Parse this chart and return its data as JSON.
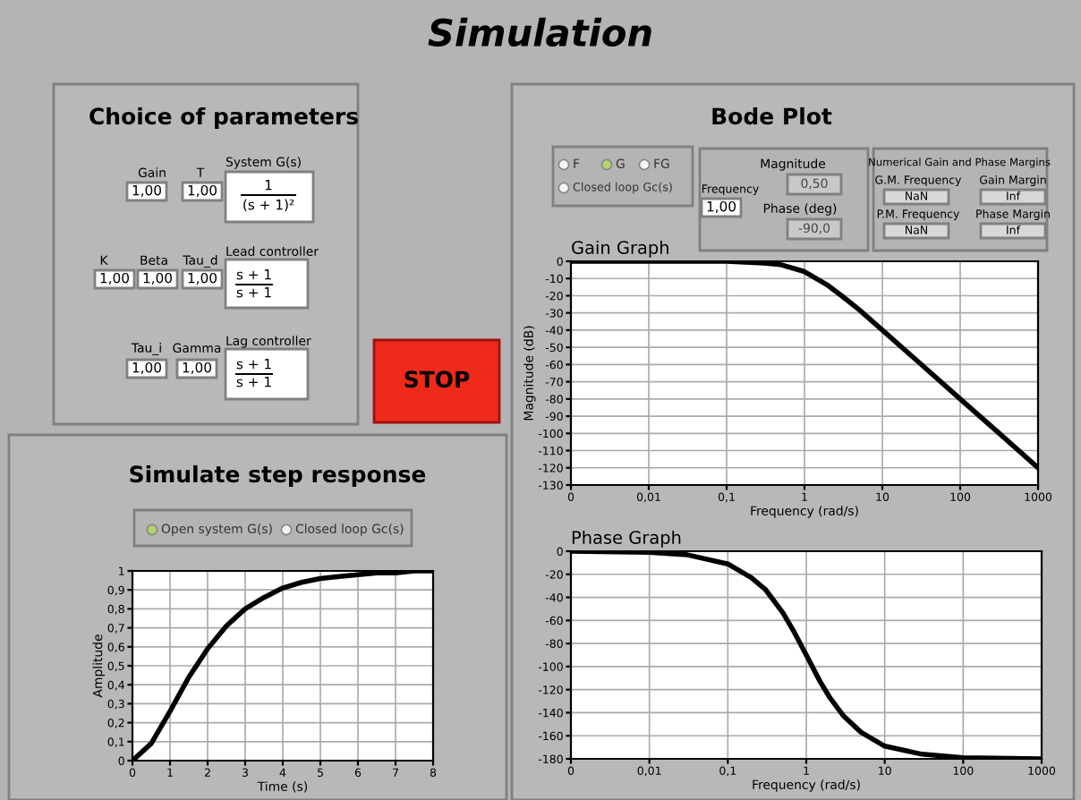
{
  "chart_data": [
    {
      "type": "other",
      "title": "Simulation",
      "annotations": [
        "Choice of parameters",
        "Gain",
        "1,00",
        "T",
        "1,00",
        "System G(s)",
        "1",
        "(s + 1)²",
        "K",
        "1,00",
        "Beta",
        "1,00",
        "Tau_d",
        "1,00",
        "Lead controller",
        "s + 1",
        "s + 1",
        "Tau_i",
        "1,00",
        "Gamma",
        "1,00",
        "Lag controller",
        "s + 1",
        "s + 1",
        "STOP",
        "Bode Plot",
        "F",
        "G",
        "FG",
        "Closed loop Gc(s)",
        "Frequency",
        "1,00",
        "Magnitude",
        "0,50",
        "Phase (deg)",
        "-90,0",
        "Numerical Gain and Phase Margins",
        "G.M. Frequency",
        "NaN",
        "Gain Margin",
        "Inf",
        "P.M. Frequency",
        "NaN",
        "Phase Margin",
        "Inf",
        "Simulate step response",
        "Open system G(s)",
        "Closed loop Gc(s)"
      ]
    },
    {
      "type": "line",
      "xlabel": "Time (s)",
      "ylabel": "Amplitude",
      "x": [
        0,
        0.5,
        1,
        1.5,
        2,
        2.5,
        3,
        3.5,
        4,
        4.5,
        5,
        5.5,
        6,
        6.5,
        7,
        7.5,
        8
      ],
      "series": [
        {
          "color": "#000000",
          "values": [
            0,
            0.09,
            0.26,
            0.44,
            0.59,
            0.71,
            0.8,
            0.86,
            0.91,
            0.94,
            0.96,
            0.97,
            0.98,
            0.99,
            0.99,
            1.0,
            1.0
          ]
        }
      ],
      "xlim": [
        0,
        8
      ],
      "xticks": [
        0,
        1,
        2,
        3,
        4,
        5,
        6,
        7,
        8
      ],
      "ylim": [
        0,
        1
      ],
      "yticks": [
        0,
        {
          "value": 0.1,
          "label": "0,1"
        },
        {
          "value": 0.2,
          "label": "0,2"
        },
        {
          "value": 0.3,
          "label": "0,3"
        },
        {
          "value": 0.4,
          "label": "0,4"
        },
        {
          "value": 0.5,
          "label": "0,5"
        },
        {
          "value": 0.6,
          "label": "0,6"
        },
        {
          "value": 0.7,
          "label": "0,7"
        },
        {
          "value": 0.8,
          "label": "0,8"
        },
        {
          "value": 0.9,
          "label": "0,9"
        },
        1
      ],
      "grid": true,
      "legend": false
    },
    {
      "type": "line",
      "title": "Gain Graph",
      "xlabel": "Frequency (rad/s)",
      "ylabel": "Magnitude (dB)",
      "log": "x",
      "x": [
        0.001,
        0.01,
        0.1,
        0.3,
        0.5,
        1,
        2,
        3,
        5,
        10,
        30,
        100,
        300,
        1000
      ],
      "series": [
        {
          "color": "#000000",
          "values": [
            0,
            0,
            0,
            -1,
            -2,
            -6,
            -14,
            -20,
            -28,
            -40,
            -59,
            -80,
            -99,
            -120
          ]
        }
      ],
      "xlim": [
        0.001,
        1000
      ],
      "xticks": [
        {
          "value": 0.001,
          "label": "0"
        },
        {
          "value": 0.01,
          "label": "0,01"
        },
        {
          "value": 0.1,
          "label": "0,1"
        },
        1,
        10,
        100,
        1000
      ],
      "ylim": [
        -130,
        0
      ],
      "yticks": [
        -130,
        -120,
        -110,
        -100,
        -90,
        -80,
        -70,
        -60,
        -50,
        -40,
        -30,
        -20,
        -10,
        0
      ],
      "grid": true,
      "legend": false
    },
    {
      "type": "line",
      "title": "Phase Graph",
      "xlabel": "Frequency (rad/s)",
      "log": "x",
      "x": [
        0.001,
        0.01,
        0.03,
        0.1,
        0.2,
        0.3,
        0.5,
        0.7,
        1,
        1.5,
        2,
        3,
        5,
        10,
        30,
        100,
        1000
      ],
      "series": [
        {
          "color": "#000000",
          "values": [
            0,
            -1,
            -3,
            -11,
            -23,
            -33,
            -53,
            -70,
            -90,
            -113,
            -127,
            -143,
            -157,
            -169,
            -176,
            -179,
            -180
          ]
        }
      ],
      "xlim": [
        0.001,
        1000
      ],
      "xticks": [
        {
          "value": 0.001,
          "label": "0"
        },
        {
          "value": 0.01,
          "label": "0,01"
        },
        {
          "value": 0.1,
          "label": "0,1"
        },
        1,
        10,
        100,
        1000
      ],
      "ylim": [
        -180,
        0
      ],
      "yticks": [
        -180,
        -160,
        -140,
        -120,
        -100,
        -80,
        -60,
        -40,
        -20,
        0
      ],
      "grid": true,
      "legend": false
    }
  ]
}
